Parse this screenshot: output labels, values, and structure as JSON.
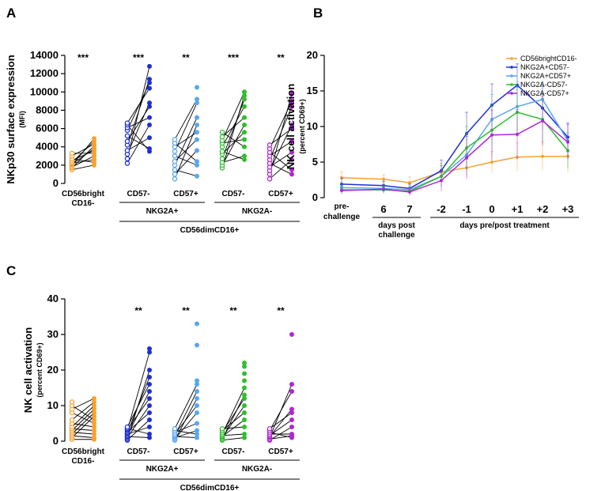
{
  "panels": {
    "A": {
      "letter": "A"
    },
    "B": {
      "letter": "B"
    },
    "C": {
      "letter": "C"
    }
  },
  "chart_data": [
    {
      "id": "A",
      "type": "scatter",
      "ylabel": "NKp30 surface expression",
      "ylabel_sub": "(MFI)",
      "ylim": [
        0,
        14000
      ],
      "yticks": [
        0,
        2000,
        4000,
        6000,
        8000,
        10000,
        12000,
        14000
      ],
      "tick_labels": [
        "0",
        "2000",
        "4000",
        "6000",
        "8000",
        "10000",
        "12000",
        "14000"
      ],
      "colors": {
        "bright": "#f5a233",
        "nkg2a_cd57neg": "#1f2fd6",
        "nkg2a_cd57pos": "#5aa6ee",
        "nkg2aneg_cd57neg": "#2fbf2f",
        "nkg2aneg_cd57pos": "#b125d4"
      },
      "group_labels": [
        "CD56bright CD16-",
        "CD57-",
        "CD57+",
        "CD57-",
        "CD57+"
      ],
      "bracket_labels": [
        "NKG2A+",
        "NKG2A-"
      ],
      "outer_label": "CD56dimCD16+",
      "significance": [
        "***",
        "***",
        "**",
        "***",
        "**"
      ],
      "groups": [
        {
          "name": "CD56bright CD16-",
          "color": "#f5a233",
          "pre": [
            1500,
            1700,
            1800,
            2000,
            2100,
            2200,
            2300,
            2500,
            2700,
            3000,
            3300
          ],
          "post": [
            2000,
            2300,
            2600,
            3000,
            3300,
            3600,
            3800,
            4100,
            4300,
            4600,
            4900
          ]
        },
        {
          "name": "NKG2A+ CD57-",
          "color": "#1f2fd6",
          "pre": [
            2200,
            2700,
            3200,
            3600,
            4200,
            4600,
            5200,
            5800,
            6100,
            6400,
            6600
          ],
          "post": [
            3500,
            3800,
            5000,
            6400,
            7200,
            8400,
            8800,
            10400,
            11000,
            11400,
            12800
          ]
        },
        {
          "name": "NKG2A+ CD57+",
          "color": "#5aa6ee",
          "pre": [
            500,
            1000,
            1500,
            2000,
            2400,
            3000,
            3500,
            4000,
            4400,
            4800
          ],
          "post": [
            800,
            2000,
            2400,
            3600,
            4800,
            5600,
            6400,
            7200,
            8800,
            9200,
            10500
          ]
        },
        {
          "name": "NKG2A- CD57-",
          "color": "#2fbf2f",
          "pre": [
            1700,
            2000,
            2300,
            2700,
            3200,
            3500,
            4000,
            4400,
            4700,
            5100,
            5600
          ],
          "post": [
            2600,
            3000,
            4000,
            4800,
            5600,
            6400,
            7200,
            8400,
            9200,
            9600,
            10000
          ]
        },
        {
          "name": "NKG2A- CD57+",
          "color": "#b125d4",
          "pre": [
            500,
            1000,
            1400,
            1800,
            2200,
            2600,
            3000,
            3400,
            3800,
            4200
          ],
          "post": [
            1000,
            1500,
            2600,
            3400,
            4600,
            6000,
            6400,
            8400,
            9000,
            9800
          ]
        }
      ]
    },
    {
      "id": "B",
      "type": "line",
      "ylabel": "NK cell activation",
      "ylabel_sub": "(percent CD69+)",
      "ylim": [
        0,
        20
      ],
      "yticks": [
        0,
        5,
        10,
        15,
        20
      ],
      "tick_labels": [
        "0",
        "5",
        "10",
        "15",
        "20"
      ],
      "x_labels": [
        "pre-challenge",
        "6",
        "7",
        "-2",
        "-1",
        "0",
        "+1",
        "+2",
        "+3"
      ],
      "x_group_labels": [
        "days post challenge",
        "days pre/post treatment"
      ],
      "series": [
        {
          "name": "CD56brightCD16-",
          "color": "#f5a233",
          "values": [
            2.8,
            2.6,
            2.1,
            3.6,
            4.2,
            5.0,
            5.7,
            5.8,
            5.8
          ],
          "err": [
            0.8,
            0.6,
            0.8,
            1.2,
            1.2,
            1.5,
            2.0,
            2.0,
            2.2
          ]
        },
        {
          "name": "NKG2A+CD57-",
          "color": "#1f2fd6",
          "values": [
            1.9,
            1.7,
            1.3,
            3.8,
            9.0,
            13.0,
            15.8,
            12.6,
            8.5
          ],
          "err": [
            0.8,
            0.6,
            0.6,
            1.5,
            3.0,
            3.0,
            3.0,
            3.0,
            2.0
          ]
        },
        {
          "name": "NKG2A+CD57+",
          "color": "#5aa6ee",
          "values": [
            1.4,
            1.3,
            1.1,
            3.0,
            6.0,
            11.0,
            12.8,
            13.8,
            8.0
          ],
          "err": [
            0.6,
            0.6,
            0.6,
            1.5,
            3.0,
            3.5,
            3.5,
            2.5,
            2.5
          ]
        },
        {
          "name": "NKG2A-CD57-",
          "color": "#2fbf2f",
          "values": [
            1.1,
            1.1,
            0.9,
            3.0,
            7.0,
            9.5,
            12.0,
            11.0,
            6.6
          ],
          "err": [
            0.5,
            0.5,
            0.5,
            1.5,
            3.0,
            3.5,
            3.5,
            3.5,
            2.5
          ]
        },
        {
          "name": "NKG2A-CD57+",
          "color": "#b125d4",
          "values": [
            1.0,
            1.2,
            0.8,
            2.4,
            5.6,
            8.8,
            8.9,
            10.8,
            7.8
          ],
          "err": [
            0.5,
            0.5,
            0.5,
            1.5,
            3.0,
            3.5,
            3.5,
            3.5,
            2.5
          ]
        }
      ]
    },
    {
      "id": "C",
      "type": "scatter",
      "ylabel": "NK cell activation",
      "ylabel_sub": "(percent CD69+)",
      "ylim": [
        0,
        40
      ],
      "yticks": [
        0,
        10,
        20,
        30,
        40
      ],
      "tick_labels": [
        "0",
        "10",
        "20",
        "30",
        "40"
      ],
      "group_labels": [
        "CD56bright CD16-",
        "CD57-",
        "CD57+",
        "CD57-",
        "CD57+"
      ],
      "bracket_labels": [
        "NKG2A+",
        "NKG2A-"
      ],
      "outer_label": "CD56dimCD16+",
      "significance": [
        "",
        "**",
        "**",
        "**",
        "**"
      ],
      "groups": [
        {
          "name": "CD56bright CD16-",
          "color": "#f5a233",
          "pre": [
            0.5,
            1.0,
            1.5,
            2.0,
            2.5,
            3.0,
            3.5,
            4.0,
            5.0,
            6.0,
            8.0,
            9.0,
            10.0,
            11.0
          ],
          "post": [
            0.5,
            1.0,
            2.0,
            3.0,
            4.0,
            5.0,
            6.0,
            7.0,
            8.0,
            9.0,
            10.0,
            11.0,
            12.0
          ]
        },
        {
          "name": "NKG2A+ CD57-",
          "color": "#1f2fd6",
          "pre": [
            0.3,
            0.6,
            1.0,
            1.3,
            1.6,
            2.0,
            2.3,
            2.6,
            3.0,
            3.3,
            3.6,
            4.0
          ],
          "post": [
            1.0,
            2.0,
            4.0,
            6.0,
            8.0,
            10.0,
            12.0,
            14.0,
            16.0,
            18.0,
            20.0,
            25.0,
            26.0
          ]
        },
        {
          "name": "NKG2A+ CD57+",
          "color": "#5aa6ee",
          "pre": [
            0.3,
            0.6,
            1.0,
            1.3,
            1.6,
            2.0,
            2.5,
            3.0,
            3.5
          ],
          "post": [
            1.0,
            2.0,
            3.0,
            5.0,
            8.0,
            10.0,
            12.0,
            14.0,
            16.0,
            17.0,
            27.0,
            33.0
          ]
        },
        {
          "name": "NKG2A- CD57-",
          "color": "#2fbf2f",
          "pre": [
            0.3,
            0.6,
            1.0,
            1.3,
            1.6,
            2.0,
            2.5,
            3.0,
            3.5
          ],
          "post": [
            1.0,
            2.0,
            4.0,
            6.0,
            8.0,
            10.0,
            12.0,
            13.0,
            15.0,
            17.0,
            19.0,
            21.0,
            22.0
          ]
        },
        {
          "name": "NKG2A- CD57+",
          "color": "#b125d4",
          "pre": [
            0.3,
            0.6,
            1.0,
            1.3,
            1.6,
            2.0,
            2.5,
            3.0,
            3.5
          ],
          "post": [
            1.0,
            1.5,
            2.0,
            4.0,
            6.0,
            8.0,
            9.0,
            14.0,
            16.0,
            30.0
          ]
        }
      ]
    }
  ]
}
